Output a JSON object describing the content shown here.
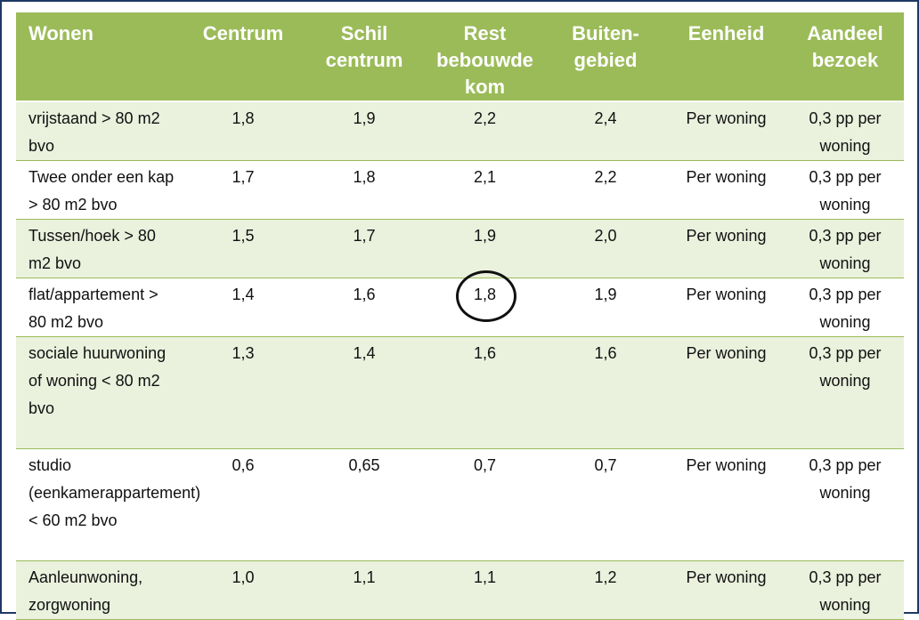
{
  "headers": [
    "Wonen",
    "Centrum",
    "Schil centrum",
    "Rest bebouwde kom",
    "Buiten-gebied",
    "Eenheid",
    "Aandeel bezoek"
  ],
  "rows": [
    [
      "vrijstaand > 80 m2 bvo",
      "1,8",
      "1,9",
      "2,2",
      "2,4",
      "Per woning",
      "0,3 pp per woning"
    ],
    [
      "Twee onder een kap > 80 m2 bvo",
      "1,7",
      "1,8",
      "2,1",
      "2,2",
      "Per woning",
      "0,3 pp per woning"
    ],
    [
      "Tussen/hoek > 80 m2 bvo",
      "1,5",
      "1,7",
      "1,9",
      "2,0",
      "Per woning",
      "0,3 pp per woning"
    ],
    [
      "flat/appartement > 80 m2 bvo",
      "1,4",
      "1,6",
      "1,8",
      "1,9",
      "Per woning",
      "0,3 pp per woning"
    ],
    [
      "sociale huurwoning of woning < 80 m2 bvo",
      "1,3",
      "1,4",
      "1,6",
      "1,6",
      "Per woning",
      "0,3 pp per woning"
    ],
    [
      "studio (eenkamerappartement) < 60 m2 bvo",
      "0,6",
      "0,65",
      "0,7",
      "0,7",
      "Per woning",
      "0,3 pp per woning"
    ],
    [
      "Aanleunwoning, zorgwoning",
      "1,0",
      "1,1",
      "1,1",
      "1,2",
      "Per woning",
      "0,3 pp per woning"
    ]
  ],
  "colors": {
    "header_bg": "#9bbb59",
    "band_bg": "#eaf1dd",
    "frame_border": "#1f3864"
  }
}
